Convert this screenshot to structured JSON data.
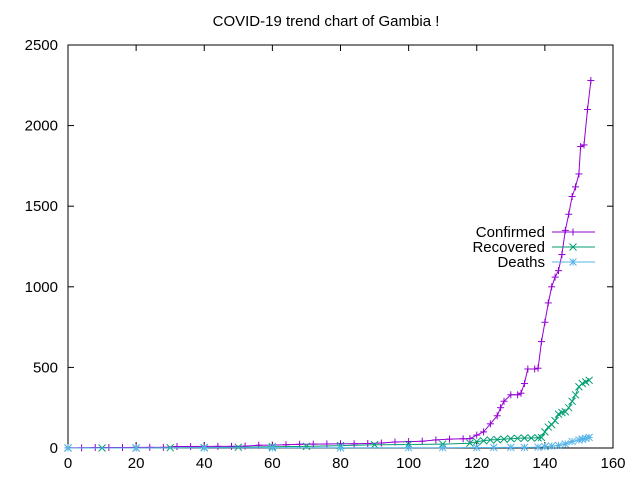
{
  "chart_data": {
    "type": "line",
    "title": "COVID-19 trend chart of Gambia !",
    "xlabel": "",
    "ylabel": "",
    "xlim": [
      0,
      160
    ],
    "ylim": [
      0,
      2500
    ],
    "x_ticks": [
      "0",
      "20",
      "40",
      "60",
      "80",
      "100",
      "120",
      "140",
      "160"
    ],
    "y_ticks": [
      "0",
      "500",
      "1000",
      "1500",
      "2000",
      "2500"
    ],
    "grid": false,
    "legend_position": "right",
    "series": [
      {
        "name": "Confirmed",
        "color": "#9400d3",
        "marker": "plus",
        "points": [
          [
            0,
            1
          ],
          [
            4,
            1
          ],
          [
            8,
            3
          ],
          [
            12,
            3
          ],
          [
            16,
            3
          ],
          [
            20,
            4
          ],
          [
            24,
            4
          ],
          [
            28,
            4
          ],
          [
            32,
            9
          ],
          [
            36,
            9
          ],
          [
            40,
            10
          ],
          [
            44,
            10
          ],
          [
            48,
            10
          ],
          [
            52,
            12
          ],
          [
            56,
            17
          ],
          [
            60,
            18
          ],
          [
            64,
            20
          ],
          [
            68,
            23
          ],
          [
            72,
            24
          ],
          [
            76,
            25
          ],
          [
            80,
            26
          ],
          [
            84,
            26
          ],
          [
            88,
            28
          ],
          [
            92,
            31
          ],
          [
            96,
            37
          ],
          [
            100,
            40
          ],
          [
            104,
            42
          ],
          [
            108,
            50
          ],
          [
            112,
            55
          ],
          [
            116,
            57
          ],
          [
            118,
            58
          ],
          [
            120,
            80
          ],
          [
            122,
            100
          ],
          [
            124,
            150
          ],
          [
            126,
            200
          ],
          [
            127,
            250
          ],
          [
            128,
            290
          ],
          [
            130,
            330
          ],
          [
            132,
            330
          ],
          [
            133,
            340
          ],
          [
            134,
            400
          ],
          [
            135,
            490
          ],
          [
            137,
            490
          ],
          [
            138,
            495
          ],
          [
            139,
            660
          ],
          [
            140,
            780
          ],
          [
            141,
            900
          ],
          [
            142,
            1000
          ],
          [
            143,
            1060
          ],
          [
            144,
            1100
          ],
          [
            145,
            1200
          ],
          [
            146,
            1350
          ],
          [
            147,
            1450
          ],
          [
            148,
            1560
          ],
          [
            149,
            1620
          ],
          [
            150,
            1700
          ],
          [
            150.5,
            1870
          ],
          [
            151.5,
            1880
          ],
          [
            152.5,
            2100
          ],
          [
            153.5,
            2280
          ]
        ]
      },
      {
        "name": "Recovered",
        "color": "#009e73",
        "marker": "x",
        "points": [
          [
            0,
            0
          ],
          [
            10,
            0
          ],
          [
            20,
            0
          ],
          [
            30,
            2
          ],
          [
            40,
            3
          ],
          [
            50,
            5
          ],
          [
            60,
            8
          ],
          [
            70,
            10
          ],
          [
            80,
            15
          ],
          [
            90,
            20
          ],
          [
            100,
            22
          ],
          [
            110,
            24
          ],
          [
            118,
            30
          ],
          [
            120,
            40
          ],
          [
            122,
            45
          ],
          [
            124,
            50
          ],
          [
            126,
            52
          ],
          [
            128,
            55
          ],
          [
            130,
            58
          ],
          [
            132,
            60
          ],
          [
            134,
            62
          ],
          [
            136,
            62
          ],
          [
            138,
            63
          ],
          [
            139,
            65
          ],
          [
            140,
            100
          ],
          [
            141,
            130
          ],
          [
            142,
            145
          ],
          [
            143,
            170
          ],
          [
            144,
            210
          ],
          [
            145,
            220
          ],
          [
            146,
            225
          ],
          [
            147,
            250
          ],
          [
            148,
            290
          ],
          [
            149,
            330
          ],
          [
            150,
            380
          ],
          [
            151,
            400
          ],
          [
            152,
            410
          ],
          [
            153,
            420
          ]
        ]
      },
      {
        "name": "Deaths",
        "color": "#56b4e9",
        "marker": "star",
        "points": [
          [
            0,
            0
          ],
          [
            20,
            0
          ],
          [
            40,
            1
          ],
          [
            60,
            1
          ],
          [
            80,
            1
          ],
          [
            100,
            2
          ],
          [
            110,
            2
          ],
          [
            120,
            3
          ],
          [
            125,
            3
          ],
          [
            130,
            4
          ],
          [
            134,
            4
          ],
          [
            138,
            5
          ],
          [
            140,
            8
          ],
          [
            142,
            12
          ],
          [
            144,
            16
          ],
          [
            146,
            25
          ],
          [
            148,
            40
          ],
          [
            150,
            50
          ],
          [
            151,
            55
          ],
          [
            152,
            60
          ],
          [
            153,
            66
          ]
        ]
      }
    ]
  }
}
